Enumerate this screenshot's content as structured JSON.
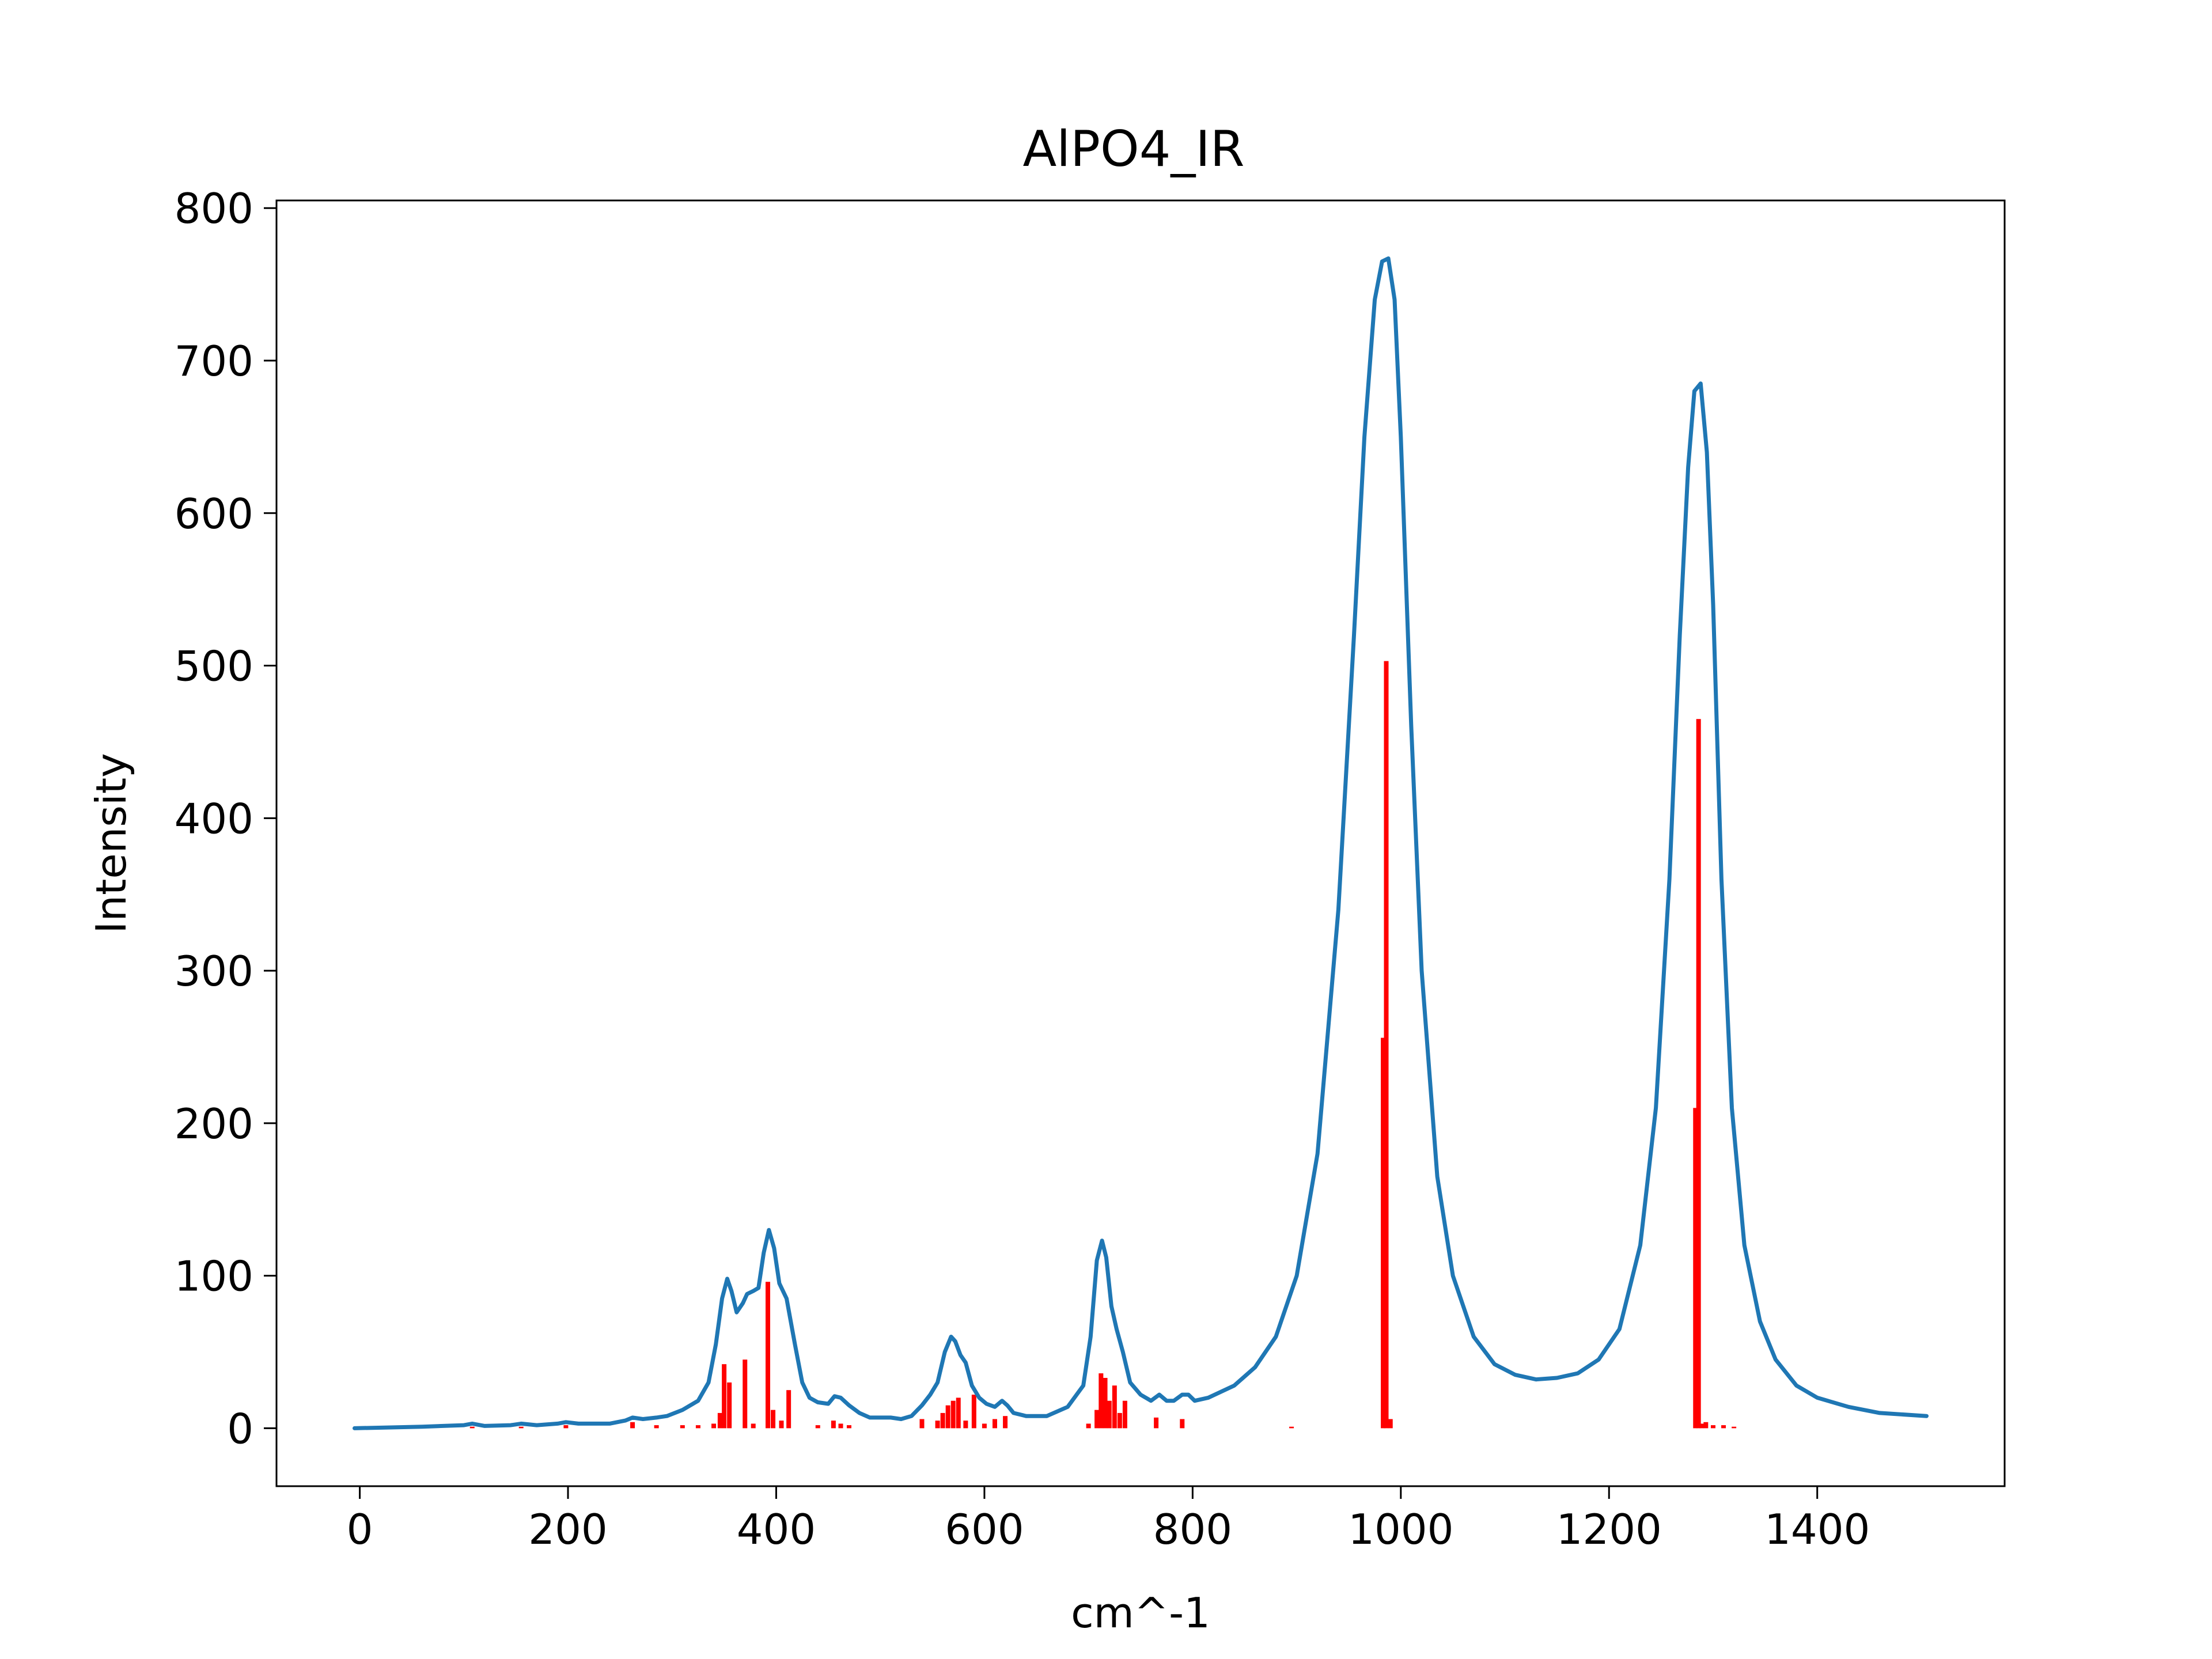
{
  "chart_data": {
    "type": "line",
    "title": "AlPO4_IR",
    "xlabel": "cm^-1",
    "ylabel": "Intensity",
    "xlim": [
      -80,
      1580
    ],
    "ylim": [
      -38,
      805
    ],
    "xticks": [
      0,
      200,
      400,
      600,
      800,
      1000,
      1200,
      1400
    ],
    "yticks": [
      0,
      100,
      200,
      300,
      400,
      500,
      600,
      700,
      800
    ],
    "grid": false,
    "legend": "none",
    "colors": {
      "spectrum": "#1f77b4",
      "sticks": "#ff0000"
    },
    "spectrum": {
      "x": [
        -5,
        60,
        100,
        108,
        120,
        145,
        155,
        170,
        190,
        198,
        210,
        240,
        255,
        262,
        272,
        285,
        295,
        310,
        325,
        335,
        342,
        348,
        353,
        357,
        362,
        368,
        372,
        378,
        383,
        388,
        393,
        398,
        403,
        410,
        418,
        425,
        432,
        440,
        450,
        456,
        462,
        470,
        480,
        490,
        500,
        510,
        520,
        530,
        540,
        548,
        555,
        562,
        568,
        572,
        577,
        582,
        588,
        595,
        602,
        610,
        617,
        622,
        628,
        640,
        660,
        680,
        695,
        702,
        708,
        713,
        717,
        722,
        727,
        733,
        740,
        750,
        760,
        768,
        775,
        782,
        790,
        796,
        802,
        815,
        840,
        860,
        880,
        900,
        920,
        940,
        955,
        965,
        975,
        982,
        988,
        994,
        1000,
        1010,
        1020,
        1035,
        1050,
        1070,
        1090,
        1110,
        1130,
        1150,
        1170,
        1190,
        1210,
        1230,
        1245,
        1258,
        1268,
        1276,
        1282,
        1288,
        1294,
        1300,
        1308,
        1318,
        1330,
        1345,
        1360,
        1380,
        1400,
        1430,
        1460,
        1505
      ],
      "y": [
        0,
        1,
        2,
        3,
        1.5,
        2,
        3,
        2,
        3,
        4,
        3,
        3,
        5,
        7,
        6,
        7,
        8,
        12,
        18,
        30,
        55,
        85,
        98,
        90,
        76,
        82,
        88,
        90,
        92,
        115,
        130,
        118,
        95,
        85,
        55,
        30,
        20,
        17,
        16,
        21,
        20,
        15,
        10,
        7,
        7,
        7,
        6,
        8,
        15,
        22,
        30,
        50,
        60,
        57,
        48,
        43,
        28,
        20,
        16,
        14,
        18,
        15,
        10,
        8,
        8,
        14,
        28,
        60,
        110,
        123,
        112,
        80,
        65,
        50,
        30,
        22,
        18,
        22,
        18,
        18,
        22,
        22,
        18,
        20,
        28,
        40,
        60,
        100,
        180,
        340,
        520,
        650,
        740,
        765,
        767,
        740,
        650,
        460,
        300,
        165,
        100,
        60,
        42,
        35,
        32,
        33,
        36,
        45,
        65,
        120,
        210,
        360,
        520,
        630,
        680,
        685,
        640,
        540,
        360,
        210,
        120,
        70,
        45,
        28,
        20,
        14,
        10,
        8
      ]
    },
    "sticks": {
      "x": [
        108,
        155,
        198,
        262,
        285,
        310,
        325,
        340,
        346,
        350,
        355,
        370,
        378,
        392,
        397,
        405,
        412,
        440,
        455,
        462,
        470,
        540,
        555,
        560,
        565,
        570,
        575,
        582,
        590,
        600,
        610,
        620,
        700,
        708,
        712,
        716,
        720,
        725,
        730,
        735,
        765,
        790,
        895,
        983,
        986,
        990,
        1283,
        1286,
        1289,
        1293,
        1300,
        1310,
        1320
      ],
      "y": [
        1,
        1,
        2,
        4,
        2,
        2,
        2,
        3,
        10,
        42,
        30,
        45,
        3,
        96,
        12,
        5,
        25,
        2,
        5,
        3,
        2,
        6,
        5,
        10,
        15,
        18,
        20,
        5,
        22,
        3,
        6,
        8,
        3,
        12,
        36,
        33,
        18,
        28,
        10,
        18,
        7,
        6,
        1,
        256,
        503,
        6,
        210,
        465,
        3,
        4,
        2,
        2,
        1
      ]
    }
  }
}
